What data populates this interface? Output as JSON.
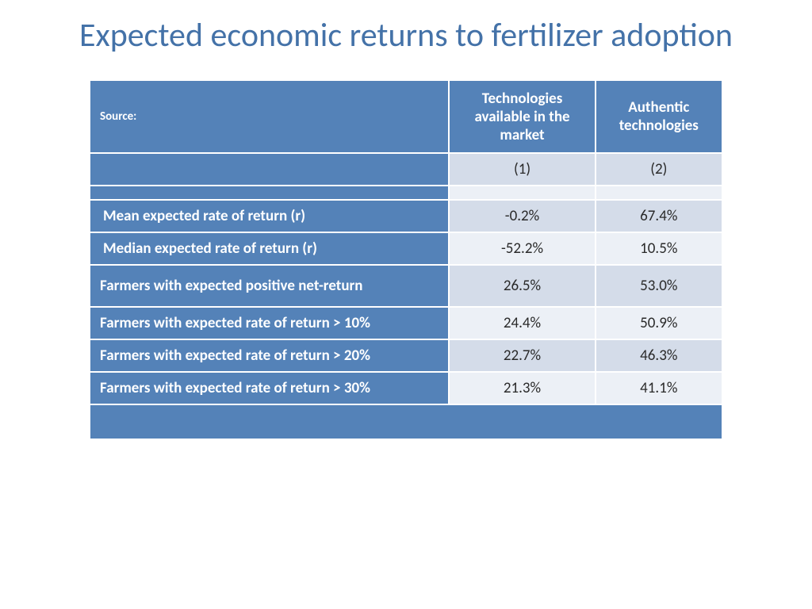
{
  "title": "Expected economic returns to fertilizer adoption",
  "table": {
    "header": {
      "source_label": "Source:",
      "col1": "Technologies available in the market",
      "col2": "Authentic technologies"
    },
    "index_row": {
      "c1": "(1)",
      "c2": "(2)"
    },
    "rows": [
      {
        "label": "",
        "c1": "",
        "c2": "",
        "shade": "lighter",
        "indent": false,
        "blank": true
      },
      {
        "label": "Mean expected rate of return (r)",
        "c1": "-0.2%",
        "c2": "67.4%",
        "shade": "light",
        "indent": true
      },
      {
        "label": "Median expected rate of return (r)",
        "c1": "-52.2%",
        "c2": "10.5%",
        "shade": "lighter",
        "indent": true
      },
      {
        "label": "Farmers with expected positive net-return",
        "c1": "26.5%",
        "c2": "53.0%",
        "shade": "light",
        "indent": false,
        "tall": true
      },
      {
        "label": "Farmers with expected rate of return > 10%",
        "c1": "24.4%",
        "c2": "50.9%",
        "shade": "lighter",
        "indent": false
      },
      {
        "label": "Farmers with expected rate of return > 20%",
        "c1": "22.7%",
        "c2": "46.3%",
        "shade": "light",
        "indent": false
      },
      {
        "label": "Farmers with expected rate of return > 30%",
        "c1": "21.3%",
        "c2": "41.1%",
        "shade": "lighter",
        "indent": false
      }
    ]
  },
  "colors": {
    "header_bg": "#5482b8",
    "light_bg": "#d4dce9",
    "lighter_bg": "#ecf0f6",
    "title_color": "#4472a8"
  },
  "col_widths": {
    "label": "57%",
    "c1": "23%",
    "c2": "20%"
  }
}
